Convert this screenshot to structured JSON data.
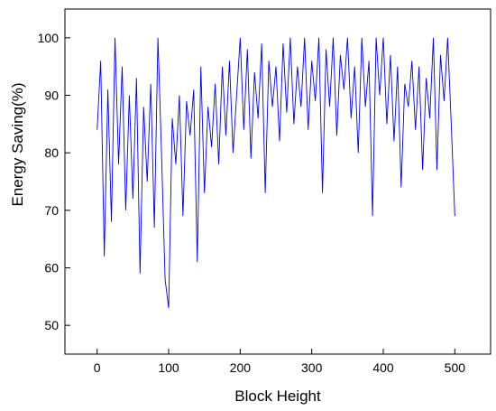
{
  "chart_data": {
    "type": "line",
    "xlabel": "Block Height",
    "ylabel": "Energy Saving(%)",
    "xlim": [
      -45,
      550
    ],
    "ylim": [
      45,
      105
    ],
    "x_ticks": [
      0,
      100,
      200,
      300,
      400,
      500
    ],
    "y_ticks": [
      50,
      60,
      70,
      80,
      90,
      100
    ],
    "grid": false,
    "line_color": "#0000ee",
    "series": [
      {
        "x": [
          0,
          5,
          10,
          15,
          20,
          25,
          30,
          35,
          40,
          45,
          50,
          55,
          60,
          65,
          70,
          75,
          80,
          85,
          90,
          95,
          100,
          105,
          110,
          115,
          120,
          125,
          130,
          135,
          140,
          145,
          150,
          155,
          160,
          165,
          170,
          175,
          180,
          185,
          190,
          195,
          200,
          205,
          210,
          215,
          220,
          225,
          230,
          235,
          240,
          245,
          250,
          255,
          260,
          265,
          270,
          275,
          280,
          285,
          290,
          295,
          300,
          305,
          310,
          315,
          320,
          325,
          330,
          335,
          340,
          345,
          350,
          355,
          360,
          365,
          370,
          375,
          380,
          385,
          390,
          395,
          400,
          405,
          410,
          415,
          420,
          425,
          430,
          435,
          440,
          445,
          450,
          455,
          460,
          465,
          470,
          475,
          480,
          485,
          490,
          495,
          500
        ],
        "y": [
          84,
          96,
          62,
          91,
          68,
          100,
          78,
          95,
          70,
          90,
          72,
          93,
          59,
          88,
          75,
          92,
          67,
          100,
          80,
          58,
          53,
          86,
          78,
          90,
          69,
          89,
          83,
          91,
          61,
          95,
          73,
          88,
          81,
          92,
          78,
          95,
          83,
          96,
          80,
          90,
          100,
          84,
          98,
          79,
          94,
          86,
          99,
          73,
          96,
          88,
          95,
          82,
          99,
          87,
          100,
          85,
          95,
          88,
          100,
          84,
          96,
          89,
          100,
          73,
          98,
          88,
          100,
          83,
          97,
          91,
          100,
          86,
          95,
          80,
          100,
          88,
          96,
          69,
          100,
          90,
          100,
          85,
          97,
          82,
          95,
          74,
          92,
          88,
          96,
          84,
          95,
          77,
          93,
          86,
          100,
          77,
          97,
          89,
          100,
          85,
          69
        ]
      }
    ]
  }
}
